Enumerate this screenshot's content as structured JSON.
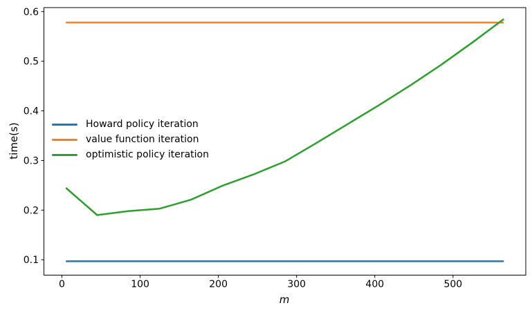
{
  "chart_data": {
    "type": "line",
    "title": "",
    "xlabel": "m",
    "ylabel": "time(s)",
    "xlim": [
      -23,
      593
    ],
    "ylim": [
      0.069,
      0.608
    ],
    "x_ticks": [
      0,
      100,
      200,
      300,
      400,
      500
    ],
    "y_ticks": [
      0.1,
      0.2,
      0.3,
      0.4,
      0.5,
      0.6
    ],
    "grid": false,
    "legend": {
      "position": "center-left",
      "frame": false
    },
    "x": [
      5,
      45,
      85,
      125,
      165,
      205,
      245,
      285,
      325,
      365,
      405,
      445,
      485,
      525,
      565
    ],
    "series": [
      {
        "name": "Howard policy iteration",
        "color": "#1f77b4",
        "values": [
          0.097,
          0.097,
          0.097,
          0.097,
          0.097,
          0.097,
          0.097,
          0.097,
          0.097,
          0.097,
          0.097,
          0.097,
          0.097,
          0.097,
          0.097
        ]
      },
      {
        "name": "value function iteration",
        "color": "#ff7f0e",
        "values": [
          0.578,
          0.578,
          0.578,
          0.578,
          0.578,
          0.578,
          0.578,
          0.578,
          0.578,
          0.578,
          0.578,
          0.578,
          0.578,
          0.578,
          0.578
        ]
      },
      {
        "name": "optimistic policy iteration",
        "color": "#2ca02c",
        "values": [
          0.245,
          0.19,
          0.198,
          0.203,
          0.221,
          0.249,
          0.272,
          0.298,
          0.335,
          0.373,
          0.411,
          0.451,
          0.493,
          0.538,
          0.585
        ]
      }
    ]
  }
}
